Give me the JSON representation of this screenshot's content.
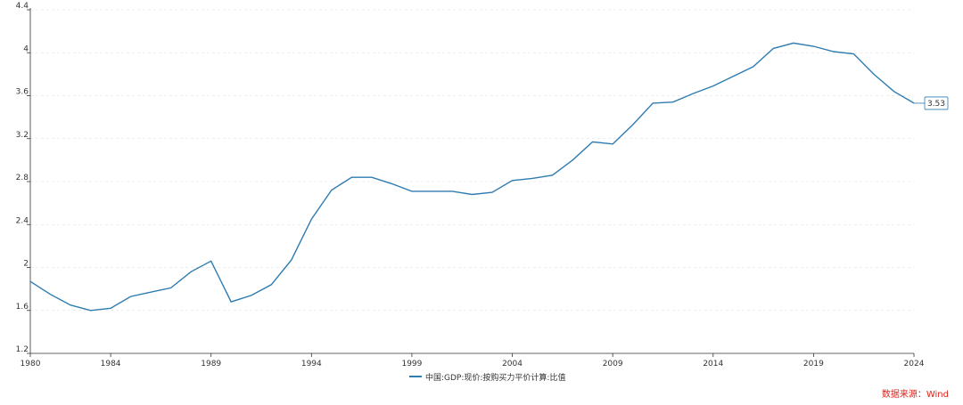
{
  "source_note": "数据来源：Wind",
  "chart_data": {
    "type": "line",
    "title": "",
    "xlabel": "",
    "ylabel": "",
    "xlim": [
      1980,
      2024
    ],
    "ylim": [
      1.2,
      4.4
    ],
    "y_ticks": [
      1.2,
      1.6,
      2,
      2.4,
      2.8,
      3.2,
      3.6,
      4,
      4.4
    ],
    "x_ticks": [
      1980,
      1984,
      1989,
      1994,
      1999,
      2004,
      2009,
      2014,
      2019,
      2024
    ],
    "grid": "horizontal dashed",
    "legend_position": "bottom-center",
    "line_color": "#2e7cb0",
    "end_label": "3.53",
    "series": [
      {
        "name": "中国:GDP:现价:按购买力平价计算:比值",
        "x": [
          1980,
          1981,
          1982,
          1983,
          1984,
          1985,
          1986,
          1987,
          1988,
          1989,
          1990,
          1991,
          1992,
          1993,
          1994,
          1995,
          1996,
          1997,
          1998,
          1999,
          2000,
          2001,
          2002,
          2003,
          2004,
          2005,
          2006,
          2007,
          2008,
          2009,
          2010,
          2011,
          2012,
          2013,
          2014,
          2015,
          2016,
          2017,
          2018,
          2019,
          2020,
          2021,
          2022,
          2023,
          2024
        ],
        "values": [
          1.87,
          1.75,
          1.65,
          1.6,
          1.62,
          1.73,
          1.77,
          1.81,
          1.96,
          2.06,
          1.68,
          1.74,
          1.84,
          2.07,
          2.45,
          2.72,
          2.84,
          2.84,
          2.78,
          2.71,
          2.71,
          2.71,
          2.68,
          2.7,
          2.81,
          2.83,
          2.86,
          3.0,
          3.17,
          3.15,
          3.33,
          3.53,
          3.54,
          3.62,
          3.69,
          3.78,
          3.87,
          4.04,
          4.09,
          4.06,
          4.01,
          3.99,
          3.8,
          3.64,
          3.53
        ]
      }
    ]
  }
}
